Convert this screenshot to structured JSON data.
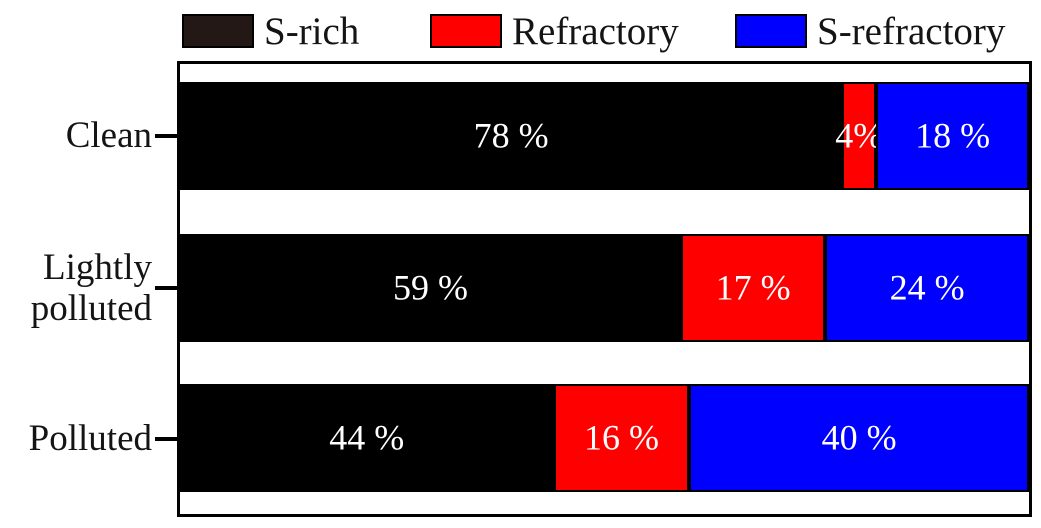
{
  "figure": {
    "background": "#ffffff",
    "axis_color": "#000000",
    "text_color": "#141414",
    "bar_label_color": "#ffffff"
  },
  "legend": {
    "position": "top",
    "items": [
      {
        "label": "S-rich",
        "swatch_color": "#231815"
      },
      {
        "label": "Refractory",
        "swatch_color": "#ff0000"
      },
      {
        "label": "S-refractory",
        "swatch_color": "#0000ff"
      }
    ]
  },
  "chart_data": {
    "type": "bar",
    "orientation": "horizontal",
    "stacked": true,
    "unit": "%",
    "x_range": [
      0,
      100
    ],
    "grid": false,
    "legend_position": "top",
    "categories": [
      "Clean",
      "Lightly polluted",
      "Polluted"
    ],
    "series": [
      {
        "name": "S-rich",
        "color": "#000000",
        "values": [
          78,
          59,
          44
        ],
        "labels": [
          "78 %",
          "59 %",
          "44 %"
        ]
      },
      {
        "name": "Refractory",
        "color": "#ff0000",
        "values": [
          4,
          17,
          16
        ],
        "labels": [
          "4%",
          "17 %",
          "16 %"
        ]
      },
      {
        "name": "S-refractory",
        "color": "#0000ff",
        "values": [
          18,
          24,
          40
        ],
        "labels": [
          "18 %",
          "24 %",
          "40 %"
        ]
      }
    ],
    "y_labels": [
      {
        "line1": "Clean",
        "line2": ""
      },
      {
        "line1": "Lightly",
        "line2": "polluted"
      },
      {
        "line1": "Polluted",
        "line2": ""
      }
    ]
  }
}
